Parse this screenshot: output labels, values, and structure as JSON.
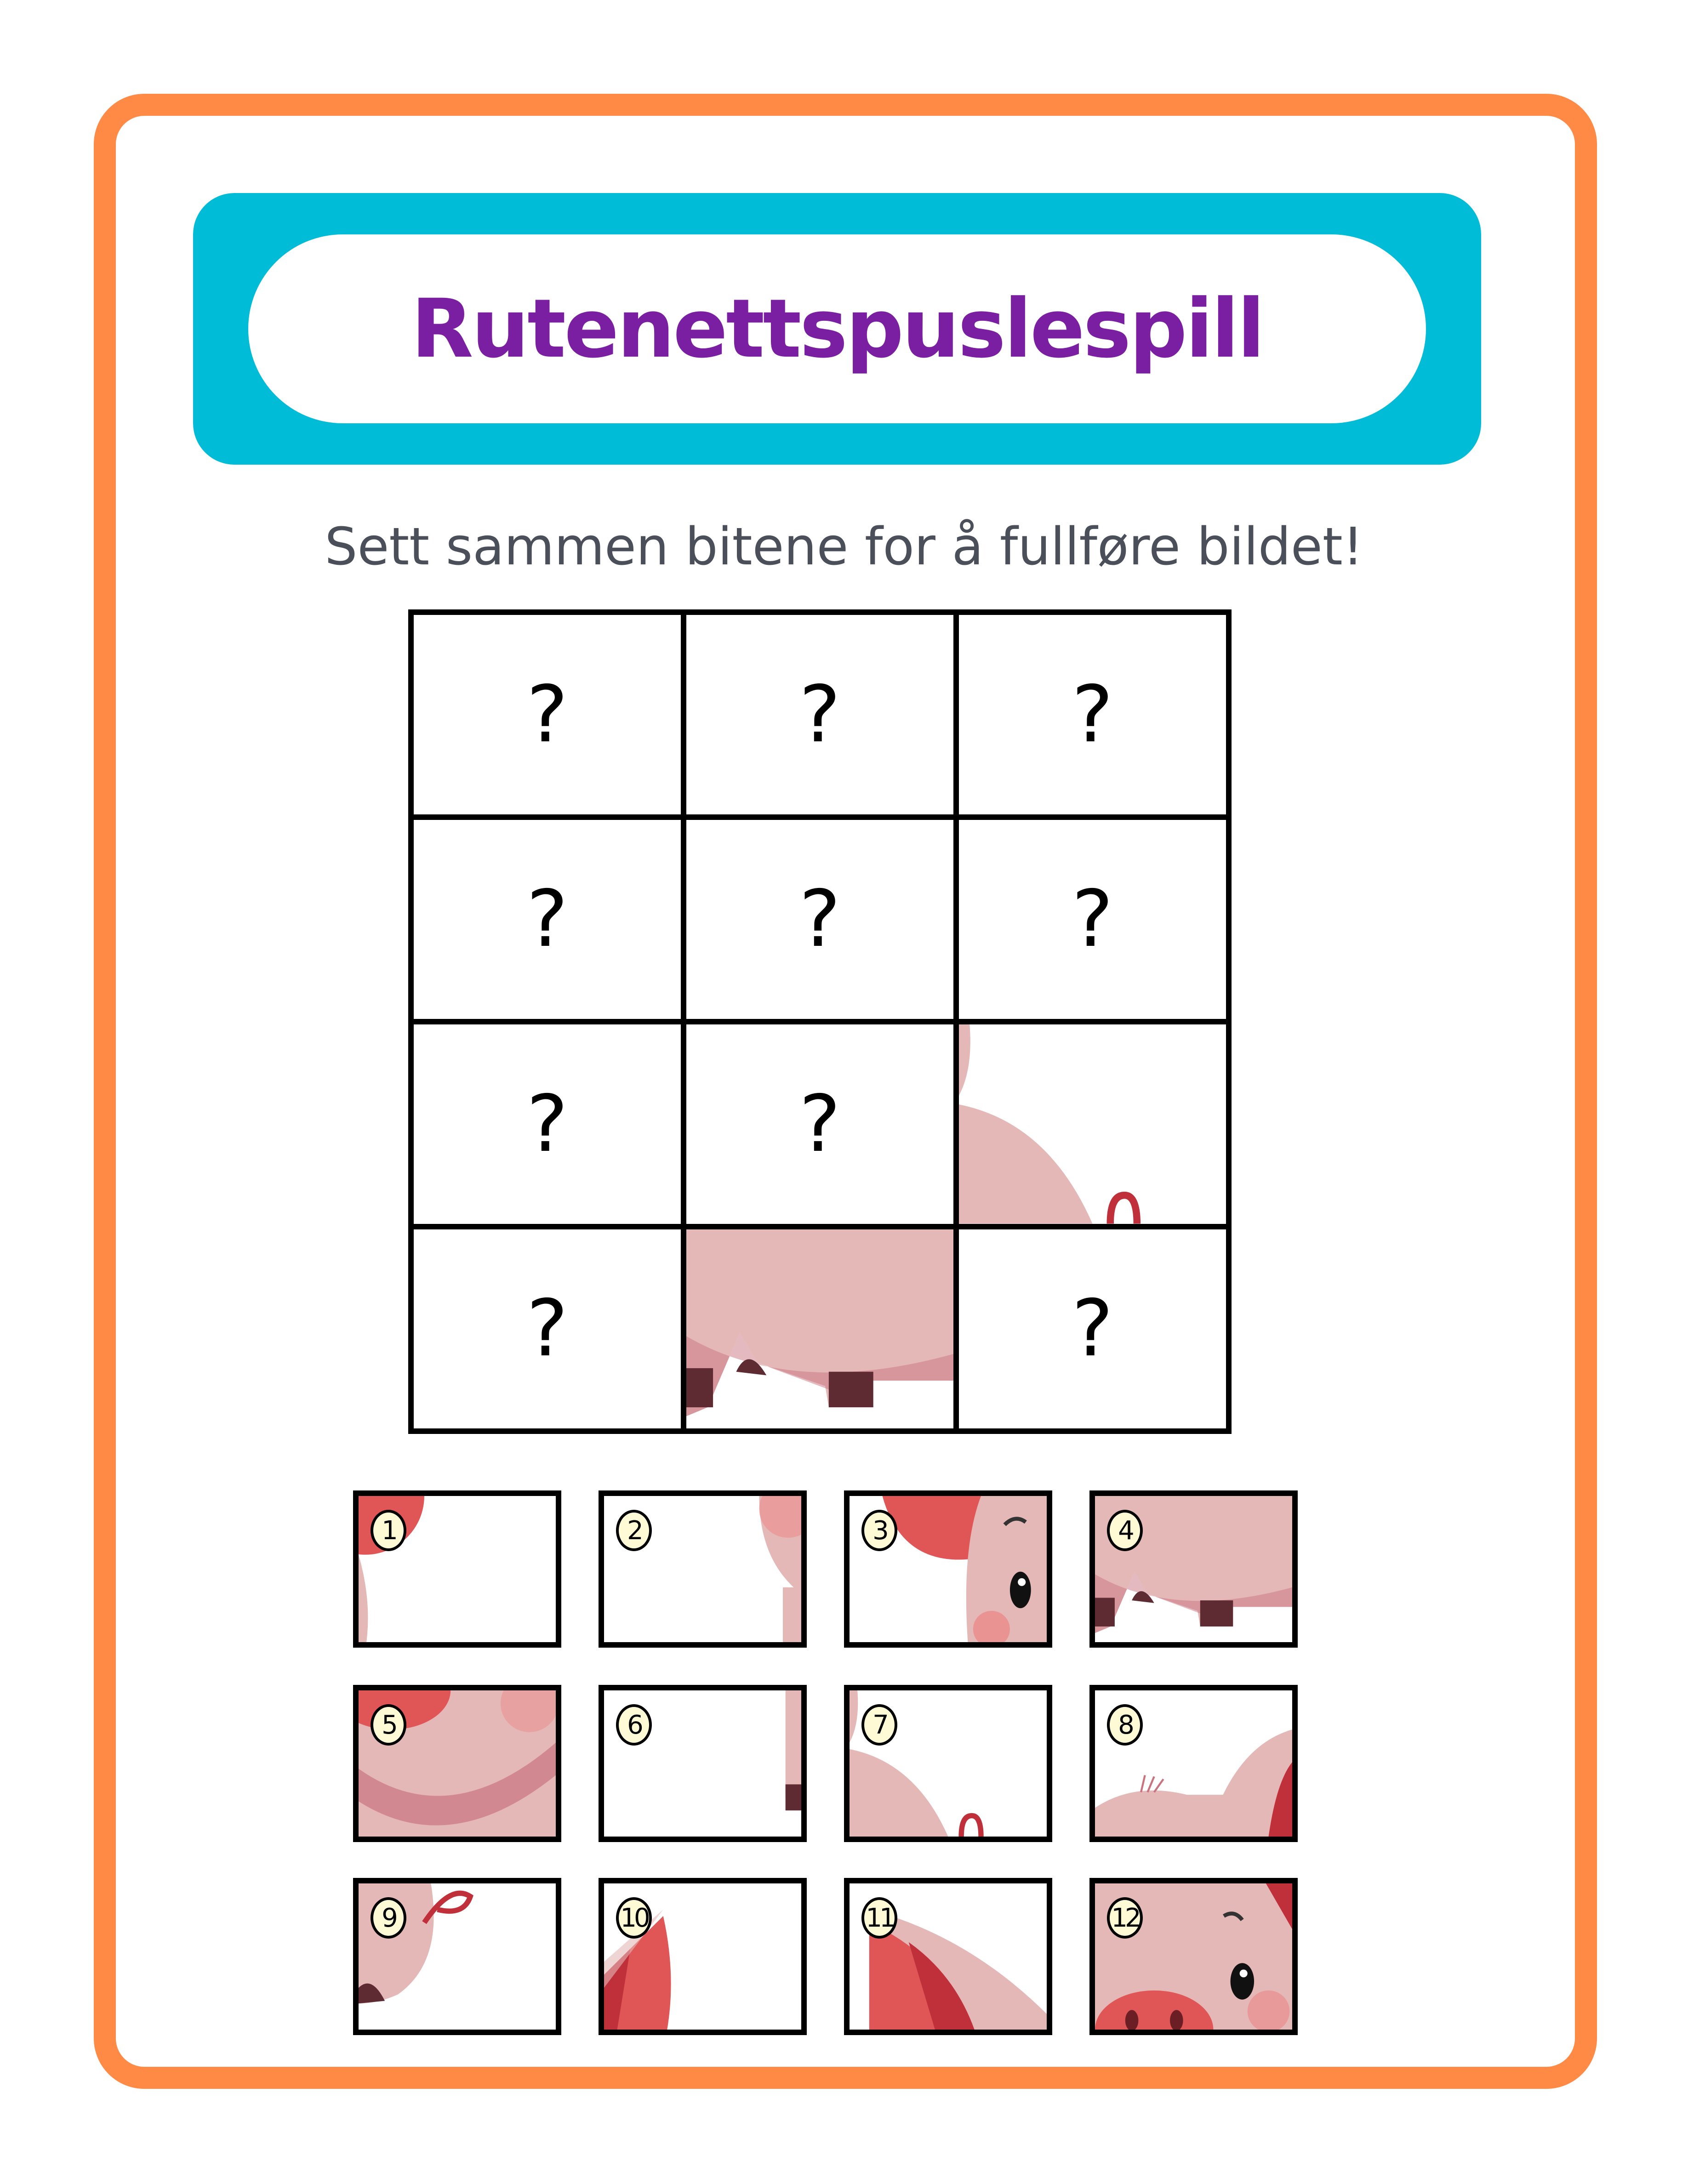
{
  "header": {
    "title": "Rutenettspuslespill"
  },
  "instructions": "Sett sammen bitene for å fullføre bildet!",
  "colors": {
    "frame": "#FF8A45",
    "banner": "#00BCD6",
    "title": "#7A1FA2",
    "badge": "#FFFAD6",
    "pig_pink": "#E5B8B8",
    "pig_red": "#E05555"
  },
  "grid": {
    "rows": 4,
    "cols": 3,
    "cells": [
      {
        "label": "?",
        "piece": null
      },
      {
        "label": "?",
        "piece": null
      },
      {
        "label": "?",
        "piece": null
      },
      {
        "label": "?",
        "piece": null
      },
      {
        "label": "?",
        "piece": null
      },
      {
        "label": "?",
        "piece": null
      },
      {
        "label": "?",
        "piece": null
      },
      {
        "label": "?",
        "piece": null
      },
      {
        "label": null,
        "piece": 7
      },
      {
        "label": "?",
        "piece": null
      },
      {
        "label": null,
        "piece": 4
      },
      {
        "label": "?",
        "piece": null
      }
    ]
  },
  "pieces": [
    {
      "number": "1"
    },
    {
      "number": "2"
    },
    {
      "number": "3"
    },
    {
      "number": "4"
    },
    {
      "number": "5"
    },
    {
      "number": "6"
    },
    {
      "number": "7"
    },
    {
      "number": "8"
    },
    {
      "number": "9"
    },
    {
      "number": "10"
    },
    {
      "number": "11"
    },
    {
      "number": "12"
    }
  ]
}
